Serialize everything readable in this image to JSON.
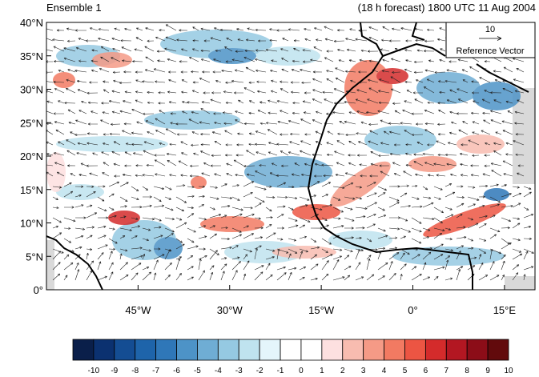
{
  "header": {
    "left_title": "Ensemble 1",
    "right_title": "(18 h forecast) 1800 UTC 11 Aug 2004"
  },
  "map": {
    "lat_range": [
      0,
      40
    ],
    "lon_range": [
      -60,
      20
    ],
    "lat_ticks": [
      "0°",
      "5°N",
      "10°N",
      "15°N",
      "20°N",
      "25°N",
      "30°N",
      "35°N",
      "40°N"
    ],
    "lon_ticks": [
      "45°W",
      "30°W",
      "15°W",
      "0°",
      "15°E"
    ],
    "reference_vector": {
      "value": "10",
      "label": "Reference Vector"
    }
  },
  "colorbar": {
    "labels": [
      "-10",
      "-9",
      "-8",
      "-7",
      "-6",
      "-5",
      "-4",
      "-3",
      "-2",
      "-1",
      "0",
      "1",
      "2",
      "3",
      "4",
      "5",
      "6",
      "7",
      "8",
      "9",
      "10"
    ],
    "colors": [
      "#0a1f4a",
      "#0b3170",
      "#144d93",
      "#1e64aa",
      "#2f77b8",
      "#4d93c7",
      "#6fadd4",
      "#95c9e2",
      "#bfe3ef",
      "#e4f5fb",
      "#ffffff",
      "#ffffff",
      "#fde0e0",
      "#f8bcb0",
      "#f59a86",
      "#f27a62",
      "#ec5543",
      "#d42b2b",
      "#b31722",
      "#8c0d18",
      "#620a0c"
    ]
  }
}
